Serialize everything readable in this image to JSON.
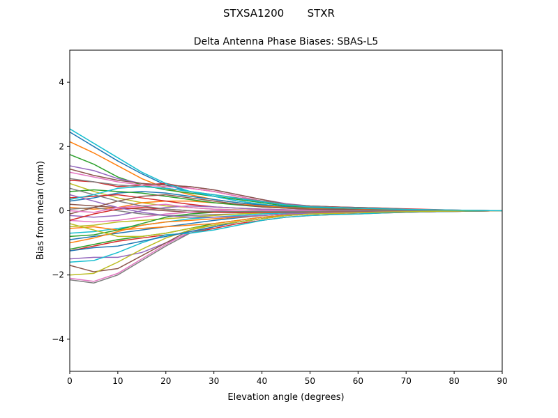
{
  "suptitle": "STXSA1200       STXR",
  "chart_data": {
    "type": "line",
    "title": "Delta Antenna Phase Biases: SBAS-L5",
    "xlabel": "Elevation angle (degrees)",
    "ylabel": "Bias from mean (mm)",
    "xlim": [
      0,
      90
    ],
    "ylim": [
      -5,
      5
    ],
    "xticks": [
      0,
      10,
      20,
      30,
      40,
      50,
      60,
      70,
      80,
      90
    ],
    "yticks": [
      -4,
      -2,
      0,
      2,
      4
    ],
    "grid": false,
    "colors": [
      "#1f77b4",
      "#ff7f0e",
      "#2ca02c",
      "#d62728",
      "#9467bd",
      "#8c564b",
      "#e377c2",
      "#7f7f7f",
      "#bcbd22",
      "#17becf"
    ],
    "x": [
      0,
      5,
      10,
      15,
      20,
      25,
      30,
      35,
      40,
      45,
      50,
      55,
      60,
      65,
      70,
      75,
      80,
      85,
      90
    ],
    "series": [
      {
        "values": [
          2.45,
          2.0,
          1.55,
          1.15,
          0.8,
          0.6,
          0.45,
          0.3,
          0.2,
          0.12,
          0.08,
          0.05,
          0.03,
          0.02,
          0.01,
          0.01,
          0,
          0,
          0
        ]
      },
      {
        "values": [
          2.15,
          1.8,
          1.4,
          1.0,
          0.7,
          0.5,
          0.35,
          0.25,
          0.15,
          0.1,
          0.06,
          0.04,
          0.03,
          0.02,
          0.01,
          0.01,
          0,
          0,
          0
        ]
      },
      {
        "values": [
          1.75,
          1.45,
          1.05,
          0.8,
          0.65,
          0.55,
          0.45,
          0.35,
          0.25,
          0.15,
          0.1,
          0.07,
          0.05,
          0.04,
          0.03,
          0.02,
          0.01,
          0,
          0
        ]
      },
      {
        "values": [
          0.95,
          0.9,
          0.75,
          0.8,
          0.85,
          0.7,
          0.6,
          0.45,
          0.3,
          0.2,
          0.15,
          0.12,
          0.1,
          0.08,
          0.06,
          0.04,
          0.02,
          0.01,
          0
        ]
      },
      {
        "values": [
          1.4,
          1.25,
          1.0,
          0.85,
          0.8,
          0.75,
          0.65,
          0.5,
          0.35,
          0.22,
          0.15,
          0.12,
          0.1,
          0.08,
          0.05,
          0.03,
          0.02,
          0.01,
          0
        ]
      },
      {
        "values": [
          1.3,
          1.1,
          0.95,
          0.85,
          0.8,
          0.75,
          0.65,
          0.5,
          0.35,
          0.2,
          0.15,
          0.12,
          0.1,
          0.08,
          0.05,
          0.03,
          0.02,
          0.01,
          0
        ]
      },
      {
        "values": [
          1.2,
          1.05,
          0.9,
          0.8,
          0.75,
          0.7,
          0.6,
          0.45,
          0.3,
          0.2,
          0.14,
          0.1,
          0.08,
          0.06,
          0.04,
          0.03,
          0.02,
          0.01,
          0
        ]
      },
      {
        "values": [
          1.0,
          0.9,
          0.8,
          0.75,
          0.7,
          0.6,
          0.5,
          0.4,
          0.3,
          0.2,
          0.14,
          0.1,
          0.08,
          0.06,
          0.04,
          0.03,
          0.02,
          0.01,
          0
        ]
      },
      {
        "values": [
          0.85,
          0.6,
          0.4,
          0.25,
          0.15,
          0.1,
          0.05,
          0.03,
          0.02,
          0.01,
          0.01,
          0,
          0,
          0,
          0,
          0,
          0,
          0,
          0
        ]
      },
      {
        "values": [
          2.55,
          2.1,
          1.65,
          1.2,
          0.85,
          0.6,
          0.45,
          0.3,
          0.2,
          0.12,
          0.08,
          0.05,
          0.03,
          0.02,
          0.01,
          0.01,
          0,
          0,
          0
        ]
      },
      {
        "values": [
          0.3,
          0.4,
          0.55,
          0.6,
          0.55,
          0.45,
          0.35,
          0.25,
          0.18,
          0.12,
          0.08,
          0.06,
          0.04,
          0.03,
          0.02,
          0.01,
          0.01,
          0,
          0
        ]
      },
      {
        "values": [
          0.1,
          0.05,
          0.1,
          0.25,
          0.3,
          0.3,
          0.25,
          0.2,
          0.15,
          0.1,
          0.07,
          0.05,
          0.04,
          0.03,
          0.02,
          0.01,
          0.01,
          0,
          0
        ]
      },
      {
        "values": [
          0.6,
          0.65,
          0.6,
          0.55,
          0.45,
          0.35,
          0.25,
          0.18,
          0.12,
          0.08,
          0.05,
          0.04,
          0.03,
          0.02,
          0.02,
          0.01,
          0.01,
          0,
          0
        ]
      },
      {
        "values": [
          0.4,
          0.45,
          0.5,
          0.4,
          0.3,
          0.2,
          0.12,
          0.08,
          0.05,
          0.03,
          0.02,
          0.02,
          0.01,
          0.01,
          0,
          0,
          0,
          0,
          0
        ]
      },
      {
        "values": [
          -0.15,
          -0.2,
          -0.15,
          0.0,
          0.1,
          0.15,
          0.12,
          0.08,
          0.05,
          0.03,
          0.02,
          0.01,
          0.01,
          0,
          0,
          0,
          0,
          0,
          0
        ]
      },
      {
        "values": [
          0.2,
          0.15,
          0.1,
          0.05,
          0.0,
          -0.05,
          -0.05,
          -0.04,
          -0.03,
          -0.02,
          -0.02,
          -0.01,
          -0.01,
          0,
          0,
          0,
          0,
          0,
          0
        ]
      },
      {
        "values": [
          -0.3,
          -0.35,
          -0.3,
          -0.2,
          -0.1,
          -0.05,
          0.0,
          0.02,
          0.02,
          0.01,
          0.01,
          0,
          0,
          0,
          0,
          0,
          0,
          0,
          0
        ]
      },
      {
        "values": [
          0.05,
          0.1,
          0.0,
          -0.1,
          -0.15,
          -0.15,
          -0.12,
          -0.1,
          -0.07,
          -0.05,
          -0.04,
          -0.03,
          -0.02,
          -0.01,
          -0.01,
          0,
          0,
          0,
          0
        ]
      },
      {
        "values": [
          -0.5,
          -0.45,
          -0.35,
          -0.3,
          -0.25,
          -0.2,
          -0.15,
          -0.1,
          -0.07,
          -0.05,
          -0.04,
          -0.03,
          -0.02,
          -0.01,
          -0.01,
          0,
          0,
          0,
          0
        ]
      },
      {
        "values": [
          -0.7,
          -0.65,
          -0.55,
          -0.45,
          -0.35,
          -0.25,
          -0.2,
          -0.15,
          -0.1,
          -0.07,
          -0.05,
          -0.04,
          -0.03,
          -0.02,
          -0.01,
          0,
          0,
          0,
          0
        ]
      },
      {
        "values": [
          -0.9,
          -0.8,
          -0.7,
          -0.6,
          -0.5,
          -0.4,
          -0.3,
          -0.22,
          -0.15,
          -0.1,
          -0.07,
          -0.05,
          -0.04,
          -0.03,
          -0.02,
          -0.01,
          0,
          0,
          0
        ]
      },
      {
        "values": [
          -1.0,
          -0.85,
          -0.65,
          -0.45,
          -0.35,
          -0.3,
          -0.25,
          -0.2,
          -0.15,
          -0.1,
          -0.07,
          -0.05,
          -0.04,
          -0.03,
          -0.02,
          -0.01,
          0,
          0,
          0
        ]
      },
      {
        "values": [
          -1.2,
          -1.05,
          -0.9,
          -0.8,
          -0.7,
          -0.55,
          -0.4,
          -0.3,
          -0.2,
          -0.14,
          -0.1,
          -0.08,
          -0.06,
          -0.04,
          -0.03,
          -0.02,
          -0.01,
          0,
          0
        ]
      },
      {
        "values": [
          -1.25,
          -1.1,
          -0.95,
          -0.85,
          -0.75,
          -0.7,
          -0.55,
          -0.4,
          -0.3,
          -0.2,
          -0.15,
          -0.12,
          -0.1,
          -0.07,
          -0.05,
          -0.03,
          -0.02,
          -0.01,
          0
        ]
      },
      {
        "values": [
          -1.5,
          -1.45,
          -1.45,
          -1.3,
          -1.0,
          -0.7,
          -0.5,
          -0.35,
          -0.25,
          -0.15,
          -0.1,
          -0.08,
          -0.06,
          -0.05,
          -0.04,
          -0.03,
          -0.02,
          -0.01,
          0
        ]
      },
      {
        "values": [
          -1.7,
          -1.9,
          -1.8,
          -1.4,
          -1.0,
          -0.6,
          -0.45,
          -0.35,
          -0.25,
          -0.15,
          -0.1,
          -0.08,
          -0.06,
          -0.05,
          -0.04,
          -0.03,
          -0.02,
          -0.01,
          0
        ]
      },
      {
        "values": [
          -2.1,
          -2.2,
          -1.95,
          -1.5,
          -1.05,
          -0.65,
          -0.5,
          -0.35,
          -0.25,
          -0.15,
          -0.1,
          -0.08,
          -0.06,
          -0.05,
          -0.04,
          -0.03,
          -0.02,
          -0.01,
          0
        ]
      },
      {
        "values": [
          -2.15,
          -2.25,
          -2.0,
          -1.55,
          -1.1,
          -0.7,
          -0.5,
          -0.35,
          -0.25,
          -0.15,
          -0.1,
          -0.08,
          -0.06,
          -0.05,
          -0.04,
          -0.03,
          -0.02,
          -0.01,
          0
        ]
      },
      {
        "values": [
          -2.0,
          -1.95,
          -1.6,
          -1.2,
          -0.85,
          -0.6,
          -0.45,
          -0.35,
          -0.25,
          -0.15,
          -0.1,
          -0.08,
          -0.06,
          -0.05,
          -0.04,
          -0.03,
          -0.02,
          -0.01,
          0
        ]
      },
      {
        "values": [
          -1.6,
          -1.55,
          -1.3,
          -1.0,
          -0.75,
          -0.7,
          -0.6,
          -0.45,
          -0.3,
          -0.2,
          -0.15,
          -0.12,
          -0.1,
          -0.07,
          -0.05,
          -0.03,
          -0.02,
          -0.01,
          0
        ]
      },
      {
        "values": [
          -1.25,
          -1.15,
          -1.1,
          -0.95,
          -0.8,
          -0.65,
          -0.5,
          -0.35,
          -0.25,
          -0.15,
          -0.1,
          -0.08,
          -0.06,
          -0.05,
          -0.04,
          -0.03,
          -0.02,
          -0.01,
          0
        ]
      },
      {
        "values": [
          -0.55,
          -0.5,
          -0.6,
          -0.55,
          -0.5,
          -0.45,
          -0.4,
          -0.3,
          -0.2,
          -0.14,
          -0.1,
          -0.08,
          -0.06,
          -0.04,
          -0.03,
          -0.02,
          -0.01,
          0,
          0
        ]
      },
      {
        "values": [
          -0.8,
          -0.75,
          -0.6,
          -0.4,
          -0.2,
          -0.1,
          -0.05,
          -0.03,
          -0.02,
          -0.01,
          -0.01,
          0,
          0,
          0,
          0,
          0,
          0,
          0,
          0
        ]
      },
      {
        "values": [
          -0.3,
          -0.1,
          0.05,
          0.1,
          0.05,
          0.0,
          -0.05,
          -0.06,
          -0.05,
          -0.04,
          -0.03,
          -0.02,
          -0.02,
          -0.01,
          -0.01,
          0,
          0,
          0,
          0
        ]
      },
      {
        "values": [
          0.5,
          0.3,
          0.1,
          -0.05,
          -0.15,
          -0.2,
          -0.2,
          -0.18,
          -0.15,
          -0.1,
          -0.08,
          -0.06,
          -0.05,
          -0.04,
          -0.03,
          -0.02,
          -0.01,
          0,
          0
        ]
      },
      {
        "values": [
          -0.1,
          0.1,
          0.3,
          0.45,
          0.5,
          0.4,
          0.3,
          0.2,
          0.12,
          0.08,
          0.05,
          0.04,
          0.03,
          0.02,
          0.01,
          0.01,
          0,
          0,
          0
        ]
      },
      {
        "values": [
          0.0,
          -0.05,
          0.1,
          0.15,
          0.2,
          0.1,
          0.05,
          0.02,
          0.01,
          0,
          0,
          0,
          0,
          0,
          0,
          0,
          0,
          0,
          0
        ]
      },
      {
        "values": [
          0.7,
          0.5,
          0.3,
          0.15,
          0.05,
          0.0,
          -0.02,
          -0.03,
          -0.03,
          -0.02,
          -0.02,
          -0.01,
          -0.01,
          0,
          0,
          0,
          0,
          0,
          0
        ]
      },
      {
        "values": [
          -0.4,
          -0.6,
          -0.8,
          -0.8,
          -0.7,
          -0.55,
          -0.45,
          -0.35,
          -0.25,
          -0.15,
          -0.1,
          -0.08,
          -0.06,
          -0.04,
          -0.03,
          -0.02,
          -0.01,
          0,
          0
        ]
      },
      {
        "values": [
          0.35,
          0.5,
          0.7,
          0.75,
          0.7,
          0.6,
          0.5,
          0.38,
          0.28,
          0.18,
          0.12,
          0.1,
          0.08,
          0.06,
          0.04,
          0.03,
          0.02,
          0.01,
          0
        ]
      }
    ]
  }
}
